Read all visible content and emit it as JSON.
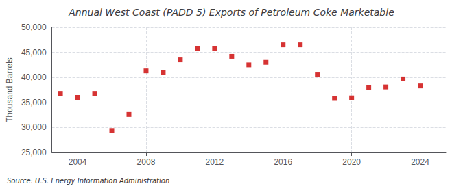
{
  "chart_data": {
    "type": "scatter",
    "title": "Annual West Coast (PADD 5) Exports of Petroleum Coke Marketable",
    "ylabel": "Thousand Barrels",
    "annotation": "Source: U.S. Energy Information Administration",
    "x": [
      2003,
      2004,
      2005,
      2006,
      2007,
      2008,
      2009,
      2010,
      2011,
      2012,
      2013,
      2014,
      2015,
      2016,
      2017,
      2018,
      2019,
      2020,
      2021,
      2022,
      2023,
      2024
    ],
    "values": [
      36800,
      36000,
      36800,
      29400,
      32600,
      41300,
      41000,
      43500,
      45800,
      45700,
      44200,
      42500,
      43000,
      46500,
      46500,
      40500,
      35800,
      35900,
      38000,
      38100,
      39700,
      38300
    ],
    "xlim": [
      2002.5,
      2025.5
    ],
    "xticks": [
      2004,
      2008,
      2012,
      2016,
      2020,
      2024
    ],
    "ylim": [
      25000,
      50000
    ],
    "yticks": [
      {
        "value": 25000,
        "label": "25,000"
      },
      {
        "value": 30000,
        "label": "30,000"
      },
      {
        "value": 35000,
        "label": "35,000"
      },
      {
        "value": 40000,
        "label": "40,000"
      },
      {
        "value": 45000,
        "label": "45,000"
      },
      {
        "value": 50000,
        "label": "50,000"
      }
    ],
    "color": "#cc0000",
    "marker": "square",
    "grid": true
  }
}
